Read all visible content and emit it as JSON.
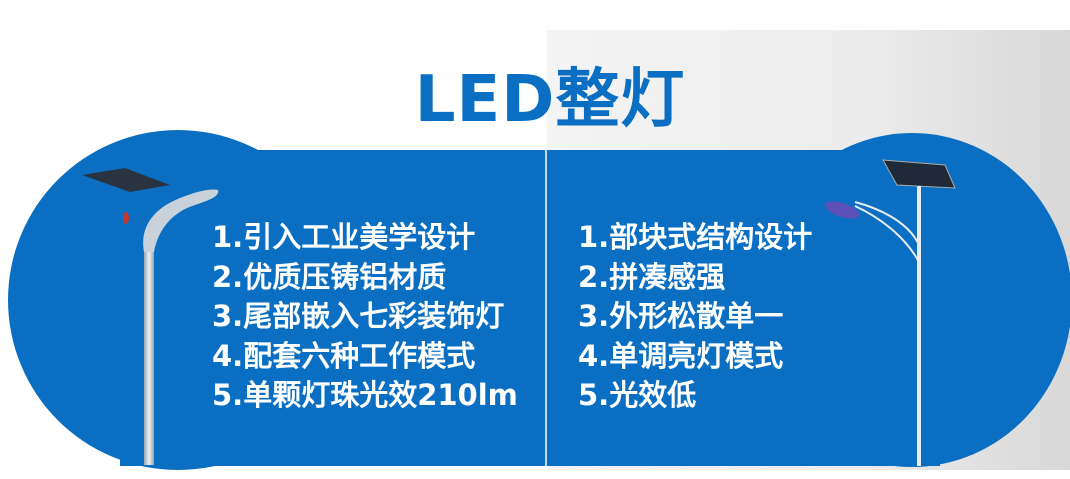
{
  "title": "LED整灯",
  "colors": {
    "accent": "#0a6fc2",
    "text": "#ffffff"
  },
  "left_panel": {
    "image": "solar-street-light-icon",
    "features": [
      "1.引入工业美学设计",
      "2.优质压铸铝材质",
      "3.尾部嵌入七彩装饰灯",
      "4.配套六种工作模式",
      "5.单颗灯珠光效210lm"
    ]
  },
  "right_panel": {
    "image": "conventional-solar-street-light-icon",
    "features": [
      "1.部块式结构设计",
      "2.拼凑感强",
      "3.外形松散单一",
      "4.单调亮灯模式",
      "5.光效低"
    ]
  }
}
